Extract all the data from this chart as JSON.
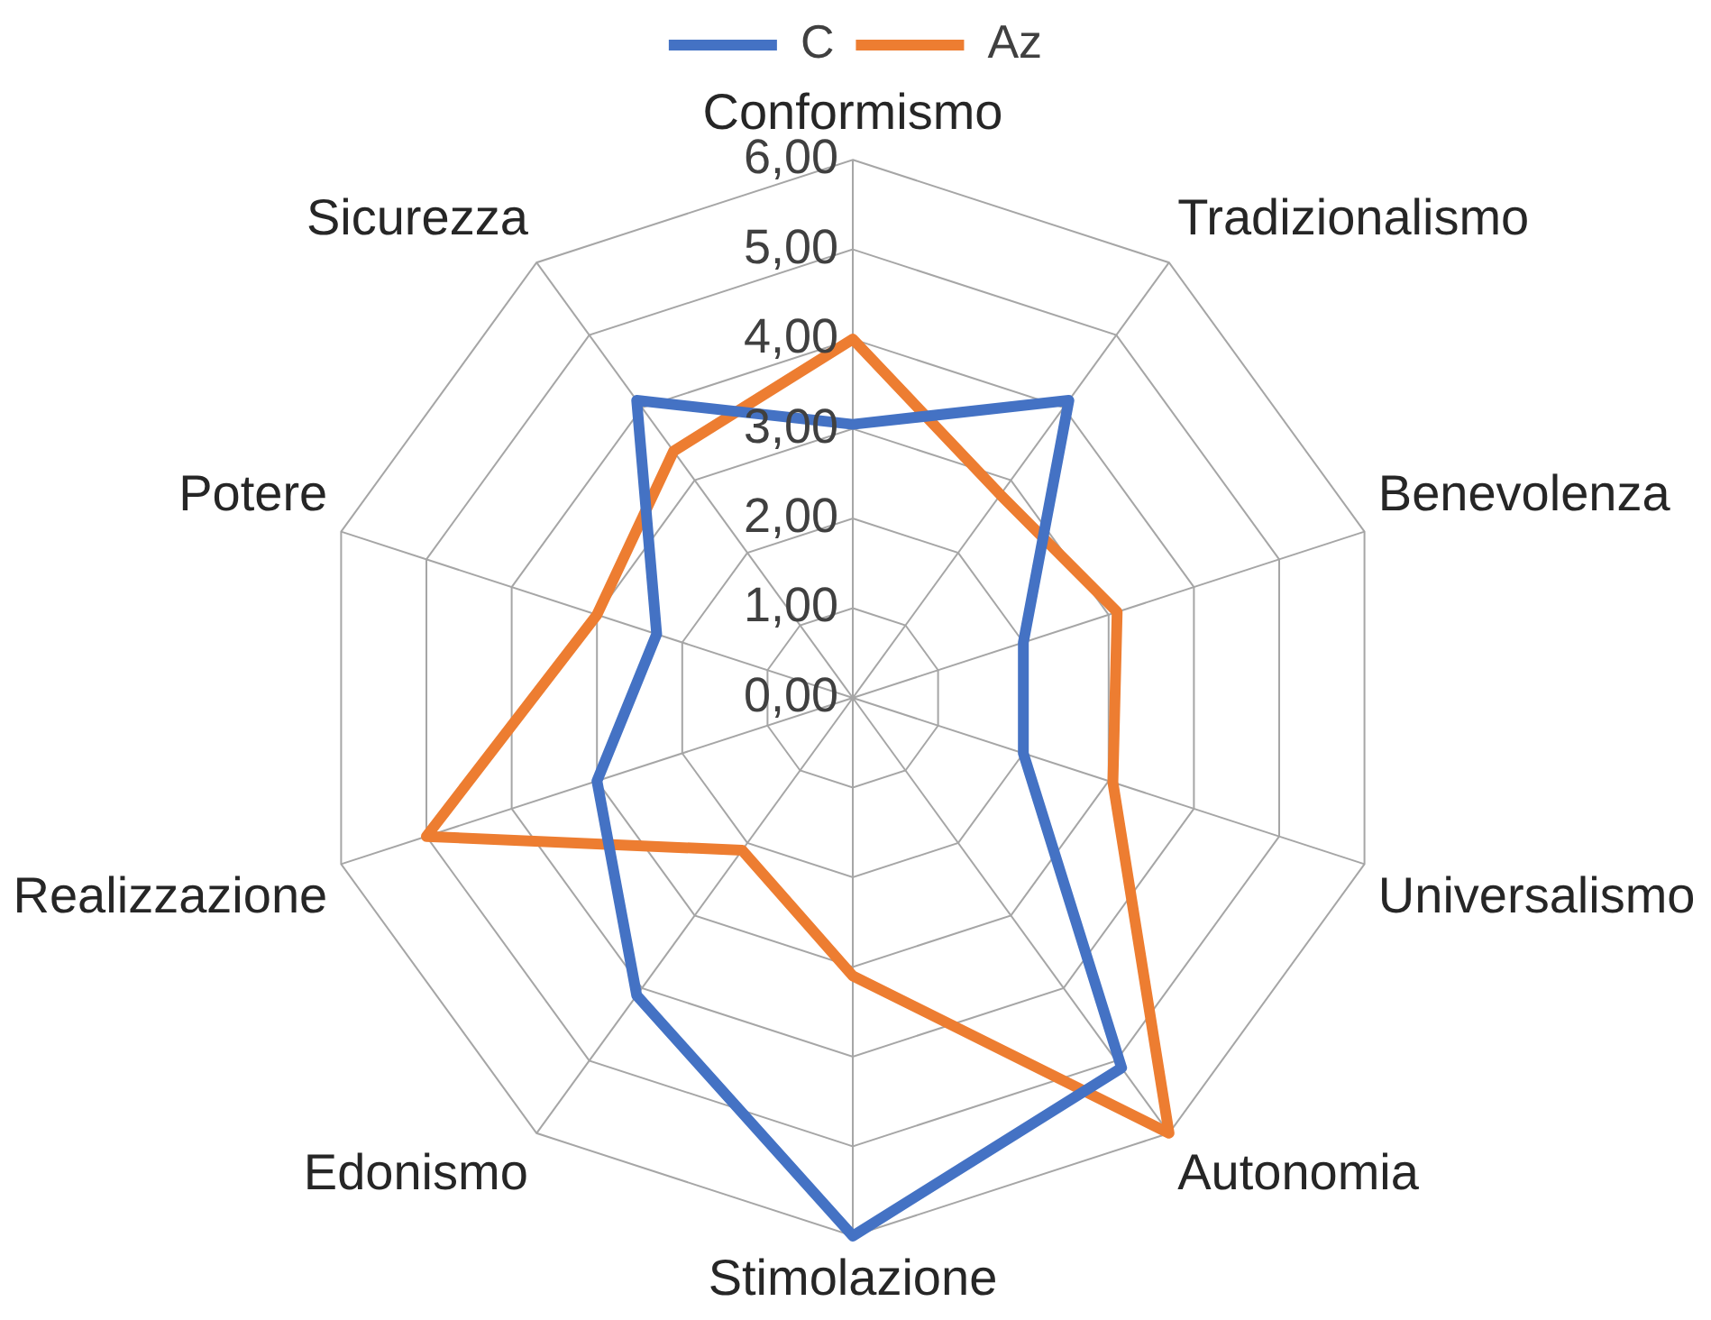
{
  "chart_data": {
    "type": "radar",
    "categories": [
      "Conformismo",
      "Tradizionalismo",
      "Benevolenza",
      "Universalismo",
      "Autonomia",
      "Stimolazione",
      "Edonismo",
      "Realizzazione",
      "Potere",
      "Sicurezza"
    ],
    "series": [
      {
        "name": "C",
        "color": "#4472c4",
        "values": [
          3.05,
          4.1,
          2.0,
          2.0,
          5.1,
          6.0,
          4.1,
          3.0,
          2.3,
          4.1
        ]
      },
      {
        "name": "Az",
        "color": "#ed7d31",
        "values": [
          4.0,
          2.8,
          3.1,
          3.05,
          6.0,
          3.1,
          2.1,
          5.0,
          3.0,
          3.4
        ]
      }
    ],
    "ylim": [
      0,
      6
    ],
    "yticks": [
      {
        "value": 0,
        "label": "0,00"
      },
      {
        "value": 1,
        "label": "1,00"
      },
      {
        "value": 2,
        "label": "2,00"
      },
      {
        "value": 3,
        "label": "3,00"
      },
      {
        "value": 4,
        "label": "4,00"
      },
      {
        "value": 5,
        "label": "5,00"
      },
      {
        "value": 6,
        "label": "6,00"
      }
    ],
    "grid": true,
    "legend": "top",
    "marker": "none",
    "line_style": "solid"
  }
}
